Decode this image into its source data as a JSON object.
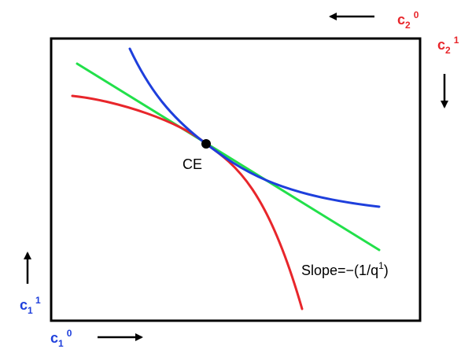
{
  "colors": {
    "agent1": "#1e3fdc",
    "agent2": "#e8262b",
    "budget_line": "#22e04a",
    "box": "#000000",
    "point": "#000000"
  },
  "axis_labels": {
    "origin1": {
      "base": "c",
      "sub": "1",
      "sup": "0"
    },
    "vertical1": {
      "base": "c",
      "sub": "1",
      "sup": "1"
    },
    "origin2": {
      "base": "c",
      "sub": "2",
      "sup": "0"
    },
    "vertical2": {
      "base": "c",
      "sub": "2",
      "sup": "1"
    }
  },
  "point_label": "CE",
  "slope_label": "Slope=−(1/q",
  "slope_label_sup": "1",
  "slope_label_end": ")",
  "icons": [
    "arrow-right-icon",
    "arrow-up-icon",
    "arrow-left-icon",
    "arrow-down-icon"
  ]
}
